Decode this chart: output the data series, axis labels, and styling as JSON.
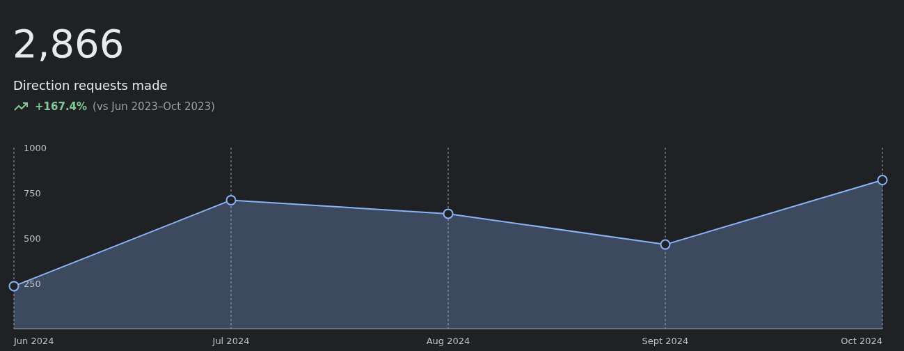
{
  "chart_data": {
    "type": "area",
    "title": "2,866",
    "subtitle": "Direction requests made",
    "annotations": [
      "+167.4%",
      "(vs Jun 2023–Oct 2023)"
    ],
    "categories": [
      "Jun 2024",
      "Jul 2024",
      "Aug 2024",
      "Sept 2024",
      "Oct 2024"
    ],
    "series": [
      {
        "color": "#8ab4f8",
        "values": [
          235,
          710,
          635,
          465,
          821
        ]
      }
    ],
    "ylim": [
      0,
      1000
    ],
    "yticks": [
      250,
      500,
      750,
      1000
    ],
    "grid": "x",
    "marker": "circle",
    "line_style": "solid"
  }
}
